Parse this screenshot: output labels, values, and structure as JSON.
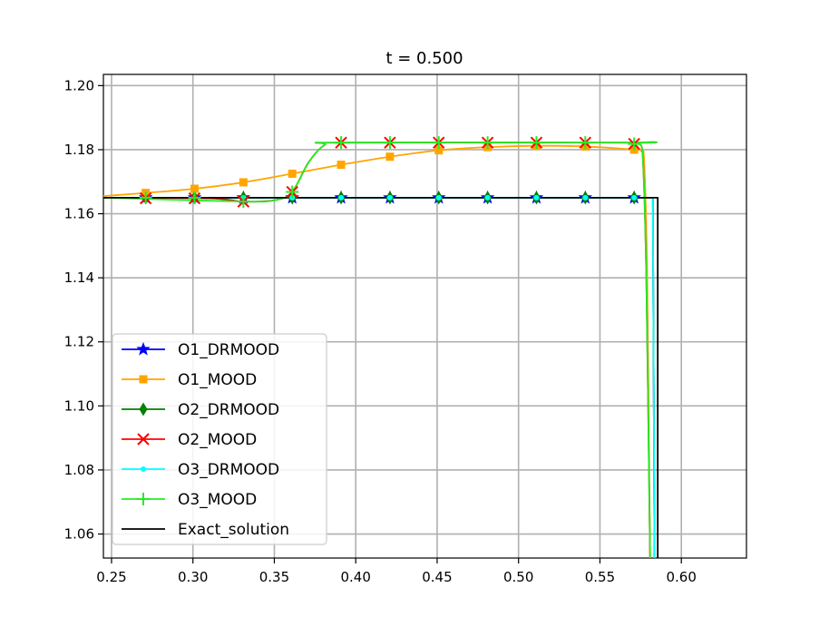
{
  "chart_data": {
    "type": "line",
    "title": "t = 0.500",
    "xlabel": "",
    "ylabel": "",
    "xlim": [
      0.245,
      0.64
    ],
    "ylim": [
      1.0525,
      1.2035
    ],
    "x_ticks": [
      "0.25",
      "0.30",
      "0.35",
      "0.40",
      "0.45",
      "0.50",
      "0.55",
      "0.60"
    ],
    "y_ticks": [
      "1.06",
      "1.08",
      "1.10",
      "1.12",
      "1.14",
      "1.16",
      "1.18",
      "1.20"
    ],
    "grid": true,
    "legend_position": "lower-left",
    "series": [
      {
        "name": "O1_DRMOOD",
        "color": "#0000ff",
        "marker": "star",
        "curve": [
          [
            0.245,
            1.165
          ],
          [
            0.575,
            1.165
          ],
          [
            0.5825,
            1.165
          ],
          [
            0.5835,
            1.0525
          ]
        ],
        "marker_points": [
          [
            0.271,
            1.165
          ],
          [
            0.301,
            1.165
          ],
          [
            0.331,
            1.165
          ],
          [
            0.361,
            1.165
          ],
          [
            0.391,
            1.165
          ],
          [
            0.421,
            1.165
          ],
          [
            0.451,
            1.165
          ],
          [
            0.481,
            1.165
          ],
          [
            0.511,
            1.165
          ],
          [
            0.541,
            1.165
          ],
          [
            0.571,
            1.165
          ]
        ]
      },
      {
        "name": "O1_MOOD",
        "color": "#ffa500",
        "marker": "square",
        "curve": [
          [
            0.245,
            1.1655
          ],
          [
            0.271,
            1.1665
          ],
          [
            0.301,
            1.1678
          ],
          [
            0.331,
            1.1698
          ],
          [
            0.361,
            1.1725
          ],
          [
            0.391,
            1.1753
          ],
          [
            0.421,
            1.1778
          ],
          [
            0.451,
            1.1798
          ],
          [
            0.481,
            1.1808
          ],
          [
            0.511,
            1.1812
          ],
          [
            0.541,
            1.181
          ],
          [
            0.571,
            1.18
          ],
          [
            0.5755,
            1.1795
          ],
          [
            0.5772,
            1.176
          ],
          [
            0.579,
            1.14
          ],
          [
            0.5808,
            1.0525
          ]
        ],
        "marker_points": [
          [
            0.271,
            1.1665
          ],
          [
            0.301,
            1.1678
          ],
          [
            0.331,
            1.1698
          ],
          [
            0.361,
            1.1725
          ],
          [
            0.391,
            1.1753
          ],
          [
            0.421,
            1.1778
          ],
          [
            0.451,
            1.1798
          ],
          [
            0.481,
            1.1808
          ],
          [
            0.511,
            1.1812
          ],
          [
            0.541,
            1.181
          ],
          [
            0.571,
            1.18
          ]
        ]
      },
      {
        "name": "O2_DRMOOD",
        "color": "#008000",
        "marker": "thin_diamond",
        "curve": [
          [
            0.245,
            1.165
          ],
          [
            0.575,
            1.165
          ],
          [
            0.5825,
            1.165
          ],
          [
            0.5835,
            1.0525
          ]
        ],
        "marker_points": [
          [
            0.271,
            1.165
          ],
          [
            0.301,
            1.165
          ],
          [
            0.331,
            1.165
          ],
          [
            0.361,
            1.165
          ],
          [
            0.391,
            1.165
          ],
          [
            0.421,
            1.165
          ],
          [
            0.451,
            1.165
          ],
          [
            0.481,
            1.165
          ],
          [
            0.511,
            1.165
          ],
          [
            0.541,
            1.165
          ],
          [
            0.571,
            1.165
          ]
        ]
      },
      {
        "name": "O2_MOOD",
        "color": "#ff0000",
        "marker": "x",
        "curve": [
          [
            0.245,
            1.165
          ],
          [
            0.31,
            1.1648
          ],
          [
            0.331,
            1.1638
          ],
          [
            0.351,
            1.1643
          ],
          [
            0.361,
            1.1668
          ],
          [
            0.371,
            1.176
          ],
          [
            0.381,
            1.1815
          ],
          [
            0.391,
            1.1822
          ],
          [
            0.571,
            1.1822
          ],
          [
            0.5745,
            1.1818
          ],
          [
            0.5765,
            1.176
          ],
          [
            0.5785,
            1.14
          ],
          [
            0.5808,
            1.0525
          ]
        ],
        "marker_points": [
          [
            0.271,
            1.1648
          ],
          [
            0.301,
            1.1648
          ],
          [
            0.331,
            1.1638
          ],
          [
            0.361,
            1.1668
          ],
          [
            0.391,
            1.1822
          ],
          [
            0.421,
            1.1822
          ],
          [
            0.451,
            1.1822
          ],
          [
            0.481,
            1.1822
          ],
          [
            0.511,
            1.1822
          ],
          [
            0.541,
            1.1822
          ],
          [
            0.571,
            1.1818
          ]
        ]
      },
      {
        "name": "O3_DRMOOD",
        "color": "#00ffff",
        "marker": "point",
        "curve": [
          [
            0.245,
            1.165
          ],
          [
            0.575,
            1.165
          ],
          [
            0.5825,
            1.165
          ],
          [
            0.5835,
            1.0525
          ]
        ],
        "marker_points": [
          [
            0.271,
            1.165
          ],
          [
            0.301,
            1.165
          ],
          [
            0.331,
            1.165
          ],
          [
            0.361,
            1.165
          ],
          [
            0.391,
            1.165
          ],
          [
            0.421,
            1.165
          ],
          [
            0.451,
            1.165
          ],
          [
            0.481,
            1.165
          ],
          [
            0.511,
            1.165
          ],
          [
            0.541,
            1.165
          ],
          [
            0.571,
            1.165
          ]
        ]
      },
      {
        "name": "O3_MOOD",
        "color": "#22ee22",
        "marker": "plus",
        "curve": [
          [
            0.245,
            1.165
          ],
          [
            0.331,
            1.1638
          ],
          [
            0.351,
            1.1643
          ],
          [
            0.361,
            1.1668
          ],
          [
            0.371,
            1.176
          ],
          [
            0.381,
            1.1815
          ],
          [
            0.391,
            1.1822
          ],
          [
            0.571,
            1.1822
          ],
          [
            0.5745,
            1.1818
          ],
          [
            0.5765,
            1.176
          ],
          [
            0.5785,
            1.14
          ],
          [
            0.5808,
            1.0525
          ]
        ],
        "marker_points": [
          [
            0.271,
            1.165
          ],
          [
            0.301,
            1.165
          ],
          [
            0.331,
            1.1638
          ],
          [
            0.361,
            1.1668
          ],
          [
            0.391,
            1.1822
          ],
          [
            0.421,
            1.1822
          ],
          [
            0.451,
            1.1822
          ],
          [
            0.481,
            1.1822
          ],
          [
            0.511,
            1.1822
          ],
          [
            0.541,
            1.1822
          ],
          [
            0.571,
            1.1818
          ]
        ]
      },
      {
        "name": "Exact_solution",
        "color": "#000000",
        "marker": "none",
        "curve": [
          [
            0.245,
            1.165
          ],
          [
            0.5855,
            1.165
          ],
          [
            0.5855,
            1.0525
          ]
        ],
        "marker_points": []
      }
    ]
  }
}
